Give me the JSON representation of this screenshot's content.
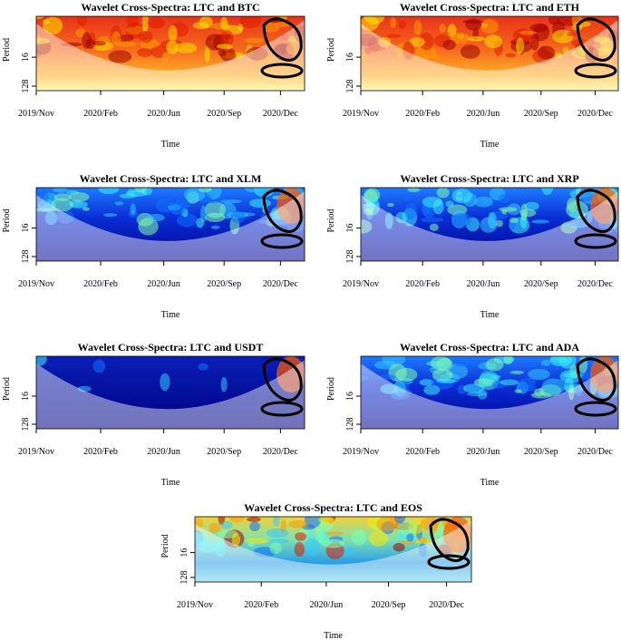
{
  "axis": {
    "x_label": "Time",
    "y_label": "Period",
    "x_ticks": [
      "2019/Nov",
      "2020/Feb",
      "2020/Jun",
      "2020/Sep",
      "2020/Dec"
    ],
    "y_ticks": [
      16,
      128
    ]
  },
  "panels": [
    {
      "title": "Wavelet Cross-Spectra: LTC and BTC"
    },
    {
      "title": "Wavelet Cross-Spectra: LTC and ETH"
    },
    {
      "title": "Wavelet Cross-Spectra: LTC and XLM"
    },
    {
      "title": "Wavelet Cross-Spectra: LTC and XRP"
    },
    {
      "title": "Wavelet Cross-Spectra: LTC and USDT"
    },
    {
      "title": "Wavelet Cross-Spectra: LTC and ADA"
    },
    {
      "title": "Wavelet Cross-Spectra: LTC and EOS"
    }
  ]
}
